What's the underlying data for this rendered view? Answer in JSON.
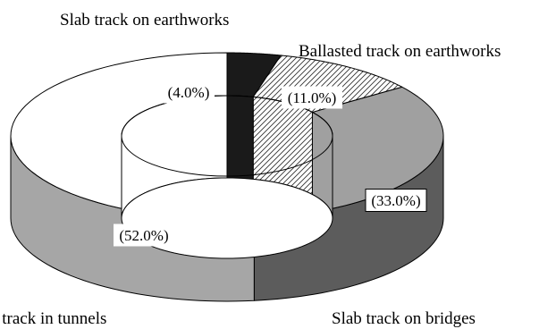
{
  "chart_data": {
    "type": "pie",
    "style": "3d-donut",
    "categories": [
      "Slab track on earthworks",
      "Ballasted track on earthworks",
      "Slab track on bridges",
      "Slab track in tunnels"
    ],
    "values": [
      4.0,
      11.0,
      33.0,
      52.0
    ],
    "value_labels": [
      "(4.0%)",
      "(11.0%)",
      "(33.0%)",
      "(52.0%)"
    ],
    "category_labels": [
      "Slab track on earthworks",
      "Ballasted track on earthworks",
      "Slab track on bridges",
      "b track in tunnels"
    ],
    "colors": [
      "#1a1a1a",
      "hatch",
      "#a0a0a0",
      "#ffffff"
    ],
    "legend": "none"
  }
}
